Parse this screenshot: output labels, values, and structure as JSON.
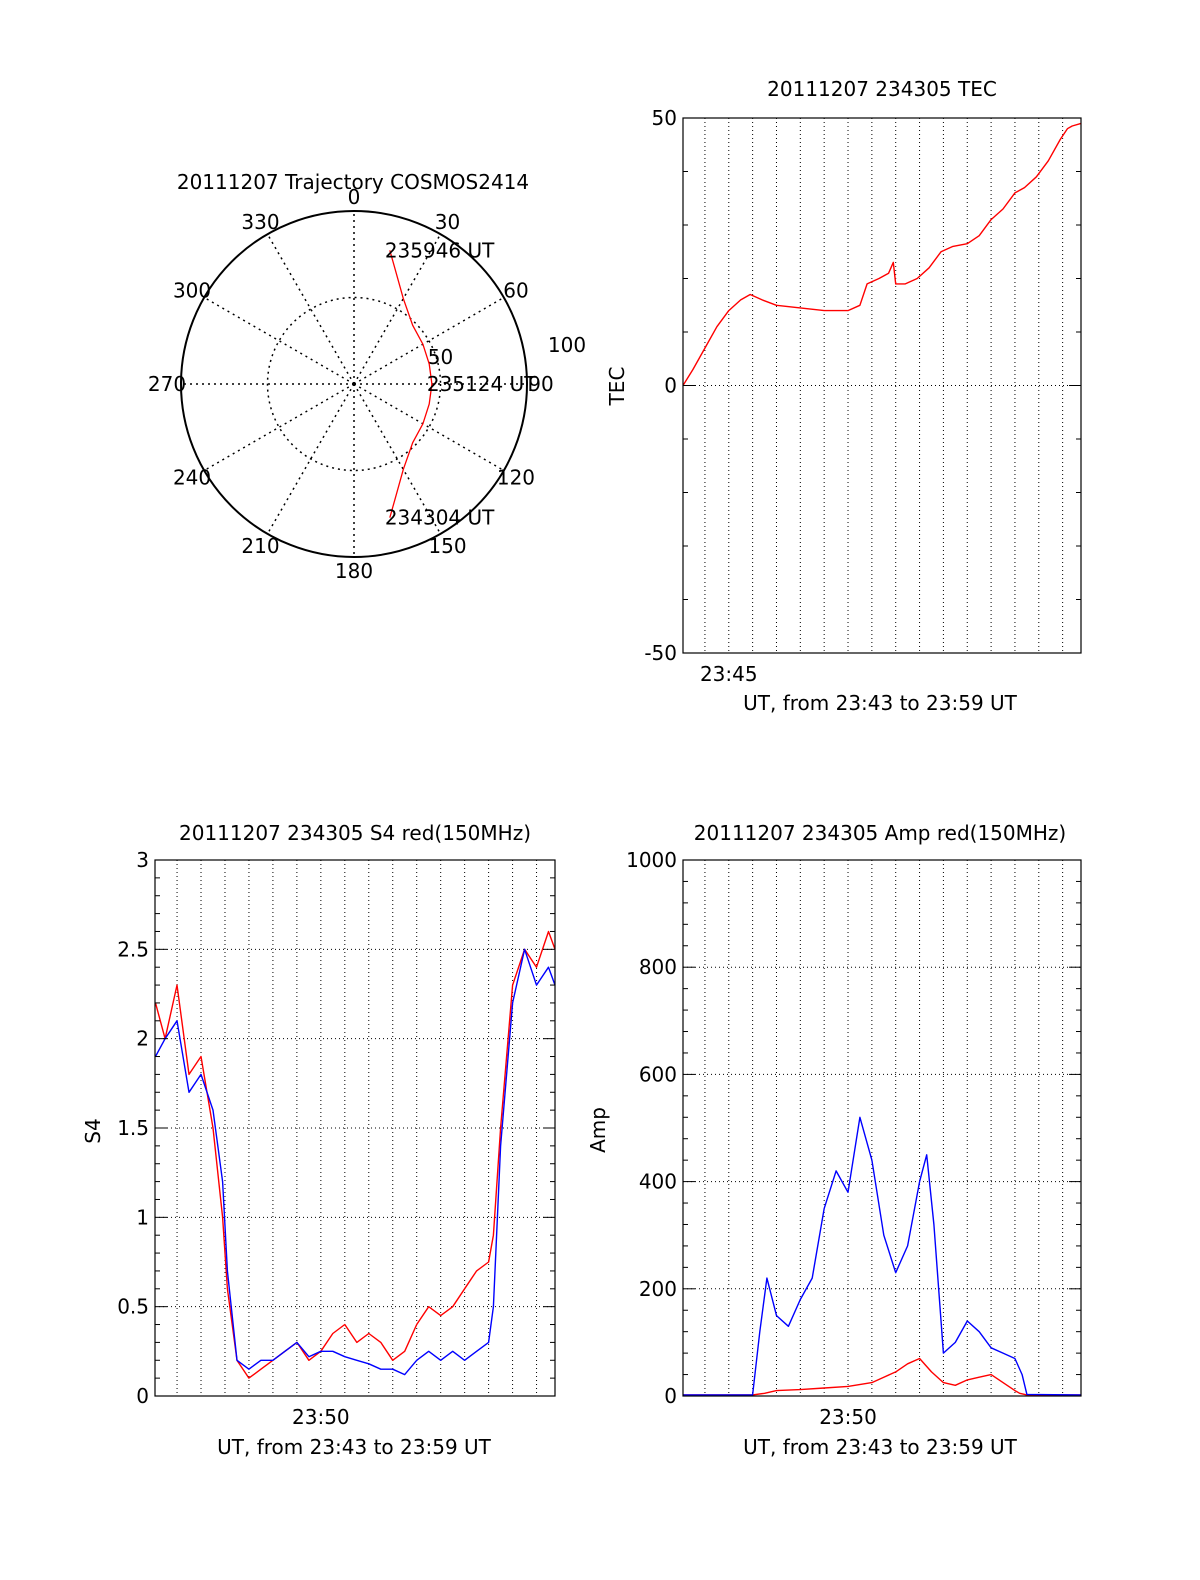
{
  "colors": {
    "red": "#ff0000",
    "blue": "#0000ff",
    "axis": "#000000",
    "grid": "#000000"
  },
  "chart_data": [
    {
      "type": "polar",
      "title": "20111207 Trajectory COSMOS2414",
      "angle_labels": [
        "0",
        "30",
        "60",
        "90",
        "120",
        "150",
        "180",
        "210",
        "240",
        "270",
        "300",
        "330"
      ],
      "radial_labels": [
        "50",
        "100"
      ],
      "radial_ticks": [
        50,
        100
      ],
      "r_max": 100,
      "annotations": [
        {
          "text": "235946 UT",
          "az": 15,
          "r": 80
        },
        {
          "text": "235124 UT",
          "az": 90,
          "r": 45
        },
        {
          "text": "234304 UT",
          "az": 165,
          "r": 80
        }
      ],
      "series": [
        {
          "color": "red",
          "points": [
            [
              15,
              80
            ],
            [
              20,
              70
            ],
            [
              30,
              57
            ],
            [
              45,
              48
            ],
            [
              60,
              46
            ],
            [
              75,
              45
            ],
            [
              90,
              45
            ],
            [
              105,
              45
            ],
            [
              120,
              46
            ],
            [
              135,
              48
            ],
            [
              150,
              57
            ],
            [
              160,
              70
            ],
            [
              165,
              80
            ]
          ]
        }
      ]
    },
    {
      "type": "line",
      "title": "20111207 234305 TEC",
      "xlabel": "UT, from 23:43 to 23:59 UT",
      "ylabel": "TEC",
      "xlim": [
        43.08,
        59.77
      ],
      "ylim": [
        -50,
        50
      ],
      "yticks": [
        "-50",
        "0",
        "50"
      ],
      "xticks": [
        {
          "label": "23:45",
          "value": 45
        }
      ],
      "series": [
        {
          "color": "red",
          "x": [
            43.08,
            43.5,
            44.0,
            44.5,
            45.0,
            45.5,
            45.9,
            46.4,
            47.0,
            48.0,
            49.0,
            50.0,
            50.5,
            50.8,
            51.3,
            51.7,
            51.9,
            52.0,
            52.4,
            52.9,
            53.4,
            53.9,
            54.4,
            55.0,
            55.5,
            56.0,
            56.5,
            57.0,
            57.4,
            57.9,
            58.4,
            58.9,
            59.2,
            59.4,
            59.77
          ],
          "y": [
            0,
            3,
            7,
            11,
            14,
            16,
            17,
            16,
            15,
            14.5,
            14,
            14,
            15,
            19,
            20,
            21,
            23,
            19,
            19,
            20,
            22,
            25,
            26,
            26.5,
            28,
            31,
            33,
            36,
            37,
            39,
            42,
            46,
            48,
            48.5,
            49
          ]
        }
      ]
    },
    {
      "type": "line",
      "title": "20111207 234305 S4 red(150MHz)",
      "xlabel": "UT, from 23:43 to 23:59 UT",
      "ylabel": "S4",
      "xlim": [
        43.08,
        59.77
      ],
      "ylim": [
        0,
        3
      ],
      "yticks": [
        "0",
        "0.5",
        "1",
        "1.5",
        "2",
        "2.5",
        "3"
      ],
      "xticks": [
        {
          "label": "23:50",
          "value": 50
        }
      ],
      "series": [
        {
          "color": "red",
          "x": [
            43.1,
            43.5,
            44.0,
            44.5,
            45.0,
            45.5,
            45.9,
            46.1,
            46.5,
            47.0,
            47.5,
            48.0,
            48.5,
            49.0,
            49.5,
            50.0,
            50.5,
            51.0,
            51.5,
            52.0,
            52.5,
            53.0,
            53.5,
            54.0,
            54.5,
            55.0,
            55.5,
            56.0,
            56.5,
            57.0,
            57.2,
            57.5,
            58.0,
            58.5,
            59.0,
            59.5,
            59.77
          ],
          "y": [
            2.2,
            2.0,
            2.3,
            1.8,
            1.9,
            1.5,
            1.0,
            0.6,
            0.2,
            0.1,
            0.15,
            0.2,
            0.25,
            0.3,
            0.2,
            0.25,
            0.35,
            0.4,
            0.3,
            0.35,
            0.3,
            0.2,
            0.25,
            0.4,
            0.5,
            0.45,
            0.5,
            0.6,
            0.7,
            0.75,
            0.9,
            1.5,
            2.3,
            2.5,
            2.4,
            2.6,
            2.5
          ]
        },
        {
          "color": "blue",
          "x": [
            43.1,
            43.5,
            44.0,
            44.5,
            45.0,
            45.5,
            45.9,
            46.1,
            46.5,
            47.0,
            47.5,
            48.0,
            48.5,
            49.0,
            49.5,
            50.0,
            50.5,
            51.0,
            51.5,
            52.0,
            52.5,
            53.0,
            53.5,
            54.0,
            54.5,
            55.0,
            55.5,
            56.0,
            56.5,
            57.0,
            57.2,
            57.5,
            58.0,
            58.5,
            59.0,
            59.5,
            59.77
          ],
          "y": [
            1.9,
            2.0,
            2.1,
            1.7,
            1.8,
            1.6,
            1.2,
            0.7,
            0.2,
            0.15,
            0.2,
            0.2,
            0.25,
            0.3,
            0.22,
            0.25,
            0.25,
            0.22,
            0.2,
            0.18,
            0.15,
            0.15,
            0.12,
            0.2,
            0.25,
            0.2,
            0.25,
            0.2,
            0.25,
            0.3,
            0.5,
            1.4,
            2.2,
            2.5,
            2.3,
            2.4,
            2.3
          ]
        }
      ]
    },
    {
      "type": "line",
      "title": "20111207 234305 Amp red(150MHz)",
      "xlabel": "UT, from 23:43 to 23:59 UT",
      "ylabel": "Amp",
      "xlim": [
        43.08,
        59.77
      ],
      "ylim": [
        0,
        1000
      ],
      "yticks": [
        "0",
        "200",
        "400",
        "600",
        "800",
        "1000"
      ],
      "xticks": [
        {
          "label": "23:50",
          "value": 50
        }
      ],
      "series": [
        {
          "color": "red",
          "x": [
            43.08,
            46.0,
            46.5,
            47.0,
            48.0,
            49.0,
            50.0,
            51.0,
            51.5,
            52.0,
            52.5,
            53.0,
            53.5,
            54.0,
            54.5,
            55.0,
            55.5,
            56.0,
            56.5,
            57.0,
            57.2,
            57.5,
            59.77
          ],
          "y": [
            2,
            2,
            5,
            10,
            12,
            15,
            18,
            25,
            35,
            45,
            60,
            70,
            45,
            25,
            20,
            30,
            35,
            40,
            25,
            10,
            5,
            2,
            2
          ]
        },
        {
          "color": "blue",
          "x": [
            43.08,
            46.0,
            46.3,
            46.6,
            47.0,
            47.5,
            48.0,
            48.5,
            49.0,
            49.5,
            50.0,
            50.5,
            51.0,
            51.5,
            52.0,
            52.5,
            53.0,
            53.3,
            53.6,
            54.0,
            54.5,
            55.0,
            55.5,
            56.0,
            56.5,
            57.0,
            57.3,
            57.5,
            59.77
          ],
          "y": [
            2,
            2,
            120,
            220,
            150,
            130,
            180,
            220,
            350,
            420,
            380,
            520,
            440,
            300,
            230,
            280,
            400,
            450,
            320,
            80,
            100,
            140,
            120,
            90,
            80,
            70,
            40,
            3,
            2
          ]
        }
      ]
    }
  ]
}
